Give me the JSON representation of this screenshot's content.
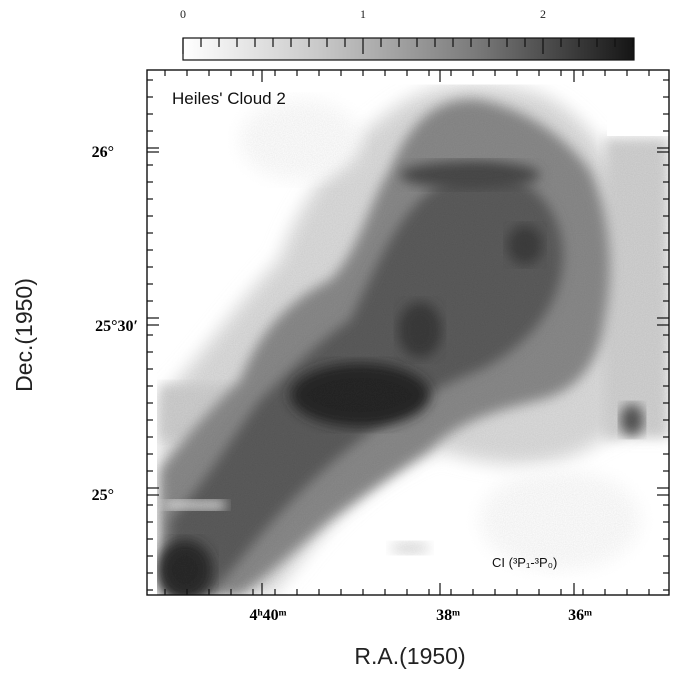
{
  "chart_data": {
    "type": "heatmap",
    "title": "Heiles' Cloud 2",
    "line_label": "CI (³P₁-³P₀)",
    "xlabel": "R.A.(1950)",
    "ylabel": "Dec.(1950)",
    "x_ticks": [
      "4ʰ40ᵐ",
      "38ᵐ",
      "36ᵐ"
    ],
    "y_ticks": [
      "26°",
      "25°30′",
      "25°"
    ],
    "colorbar": {
      "ticks": [
        "0",
        "1",
        "2"
      ],
      "range": [
        0,
        2.5
      ],
      "colors": {
        "low": "#ffffff",
        "high": "#151515"
      }
    },
    "intensity_peak": 2.5
  }
}
